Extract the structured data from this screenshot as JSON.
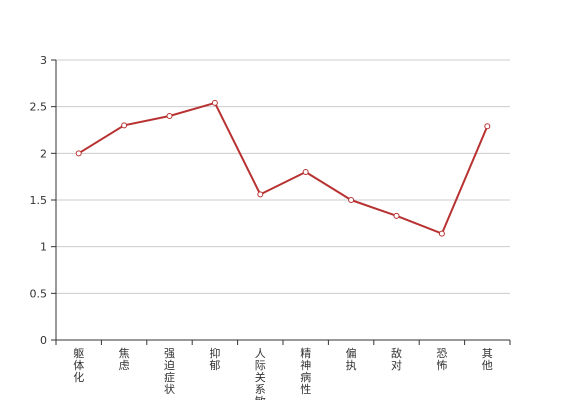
{
  "chart_data": {
    "type": "line",
    "title": "",
    "xlabel": "",
    "ylabel": "",
    "categories": [
      "躯体化",
      "焦虑",
      "强迫症状",
      "抑郁",
      "人际关系敏感",
      "精神病性",
      "偏执",
      "敌对",
      "恐怖",
      "其他"
    ],
    "series": [
      {
        "values": [
          2.0,
          2.3,
          2.4,
          2.54,
          1.56,
          1.8,
          1.5,
          1.33,
          1.14,
          2.29
        ]
      }
    ],
    "ylim": [
      0,
      3
    ],
    "yticks": [
      "0",
      "0.5",
      "1",
      "1.5",
      "2",
      "2.5",
      "3"
    ],
    "grid": true,
    "legend": "none",
    "colors": {
      "line": "#b83232",
      "marker_fill": "#ffffff",
      "grid": "#cccccc",
      "axis": "#333333"
    }
  }
}
